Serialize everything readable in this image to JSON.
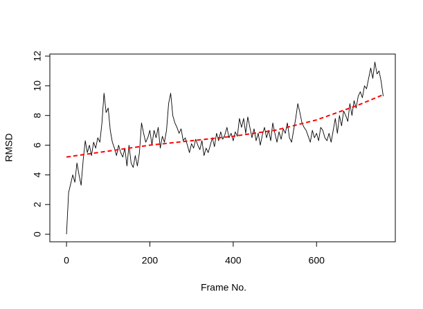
{
  "chart_data": {
    "type": "line",
    "xlabel": "Frame No.",
    "ylabel": "RMSD",
    "xlim": [
      -40,
      789
    ],
    "ylim": [
      -0.51,
      12.14
    ],
    "xticks": [
      0,
      200,
      400,
      600
    ],
    "yticks": [
      0,
      2,
      4,
      6,
      8,
      10,
      12
    ],
    "series": [
      {
        "color": "#000000",
        "line_style": "solid",
        "x": [
          0,
          5,
          10,
          15,
          20,
          25,
          30,
          35,
          40,
          45,
          50,
          55,
          60,
          65,
          70,
          75,
          80,
          85,
          90,
          95,
          100,
          105,
          110,
          115,
          120,
          125,
          130,
          135,
          140,
          145,
          150,
          155,
          160,
          165,
          170,
          175,
          180,
          185,
          190,
          195,
          200,
          205,
          210,
          215,
          220,
          225,
          230,
          235,
          240,
          245,
          250,
          255,
          260,
          265,
          270,
          275,
          280,
          285,
          290,
          295,
          300,
          305,
          310,
          315,
          320,
          325,
          330,
          335,
          340,
          345,
          350,
          355,
          360,
          365,
          370,
          375,
          380,
          385,
          390,
          395,
          400,
          405,
          410,
          415,
          420,
          425,
          430,
          435,
          440,
          445,
          450,
          455,
          460,
          465,
          470,
          475,
          480,
          485,
          490,
          495,
          500,
          505,
          510,
          515,
          520,
          525,
          530,
          535,
          540,
          545,
          550,
          555,
          560,
          565,
          570,
          575,
          580,
          585,
          590,
          595,
          600,
          605,
          610,
          615,
          620,
          625,
          630,
          635,
          640,
          645,
          650,
          655,
          660,
          665,
          670,
          675,
          680,
          685,
          690,
          695,
          700,
          705,
          710,
          715,
          720,
          725,
          730,
          735,
          740,
          745,
          750,
          755,
          760
        ],
        "values": [
          0,
          2.8,
          3.4,
          4.0,
          3.5,
          4.8,
          4.0,
          3.3,
          5.0,
          6.3,
          5.5,
          6.0,
          5.3,
          6.2,
          5.8,
          6.5,
          6.2,
          7.5,
          9.5,
          8.2,
          8.5,
          7.0,
          6.2,
          5.8,
          5.3,
          6.0,
          5.5,
          5.2,
          5.8,
          4.6,
          6.0,
          4.8,
          4.5,
          5.3,
          4.6,
          5.5,
          7.5,
          6.8,
          6.2,
          6.5,
          7.0,
          6.0,
          7.0,
          6.5,
          7.2,
          5.8,
          6.6,
          6.2,
          7.0,
          8.8,
          9.5,
          8.0,
          7.5,
          7.2,
          6.8,
          7.1,
          6.3,
          6.5,
          6.0,
          5.5,
          6.1,
          5.8,
          6.4,
          6.0,
          5.7,
          6.3,
          5.3,
          5.8,
          5.5,
          6.0,
          6.5,
          5.9,
          6.8,
          6.3,
          6.9,
          6.4,
          6.7,
          7.2,
          6.5,
          6.8,
          6.3,
          6.9,
          6.6,
          7.8,
          7.2,
          7.8,
          6.8,
          7.9,
          7.2,
          6.5,
          7.1,
          6.3,
          6.8,
          6.0,
          6.7,
          7.2,
          6.5,
          7.0,
          6.3,
          7.5,
          6.8,
          6.2,
          6.9,
          6.4,
          7.1,
          6.8,
          7.5,
          6.5,
          6.2,
          7.0,
          7.8,
          8.8,
          8.2,
          7.5,
          7.2,
          7.0,
          6.6,
          6.2,
          7.0,
          6.5,
          6.8,
          6.3,
          7.2,
          7.0,
          6.5,
          6.3,
          6.8,
          6.2,
          7.0,
          7.8,
          6.8,
          8.0,
          7.3,
          8.3,
          8.0,
          7.6,
          8.8,
          8.0,
          9.0,
          8.5,
          9.3,
          9.6,
          9.2,
          10.0,
          9.8,
          10.5,
          11.2,
          10.5,
          11.6,
          10.8,
          11.0,
          10.3,
          9.3
        ]
      },
      {
        "color": "#ff0000",
        "line_style": "dashed",
        "x": [
          0,
          100,
          200,
          300,
          400,
          500,
          600,
          700,
          760
        ],
        "values": [
          5.2,
          5.6,
          6.0,
          6.3,
          6.6,
          7.0,
          7.7,
          8.7,
          9.4
        ]
      }
    ]
  }
}
